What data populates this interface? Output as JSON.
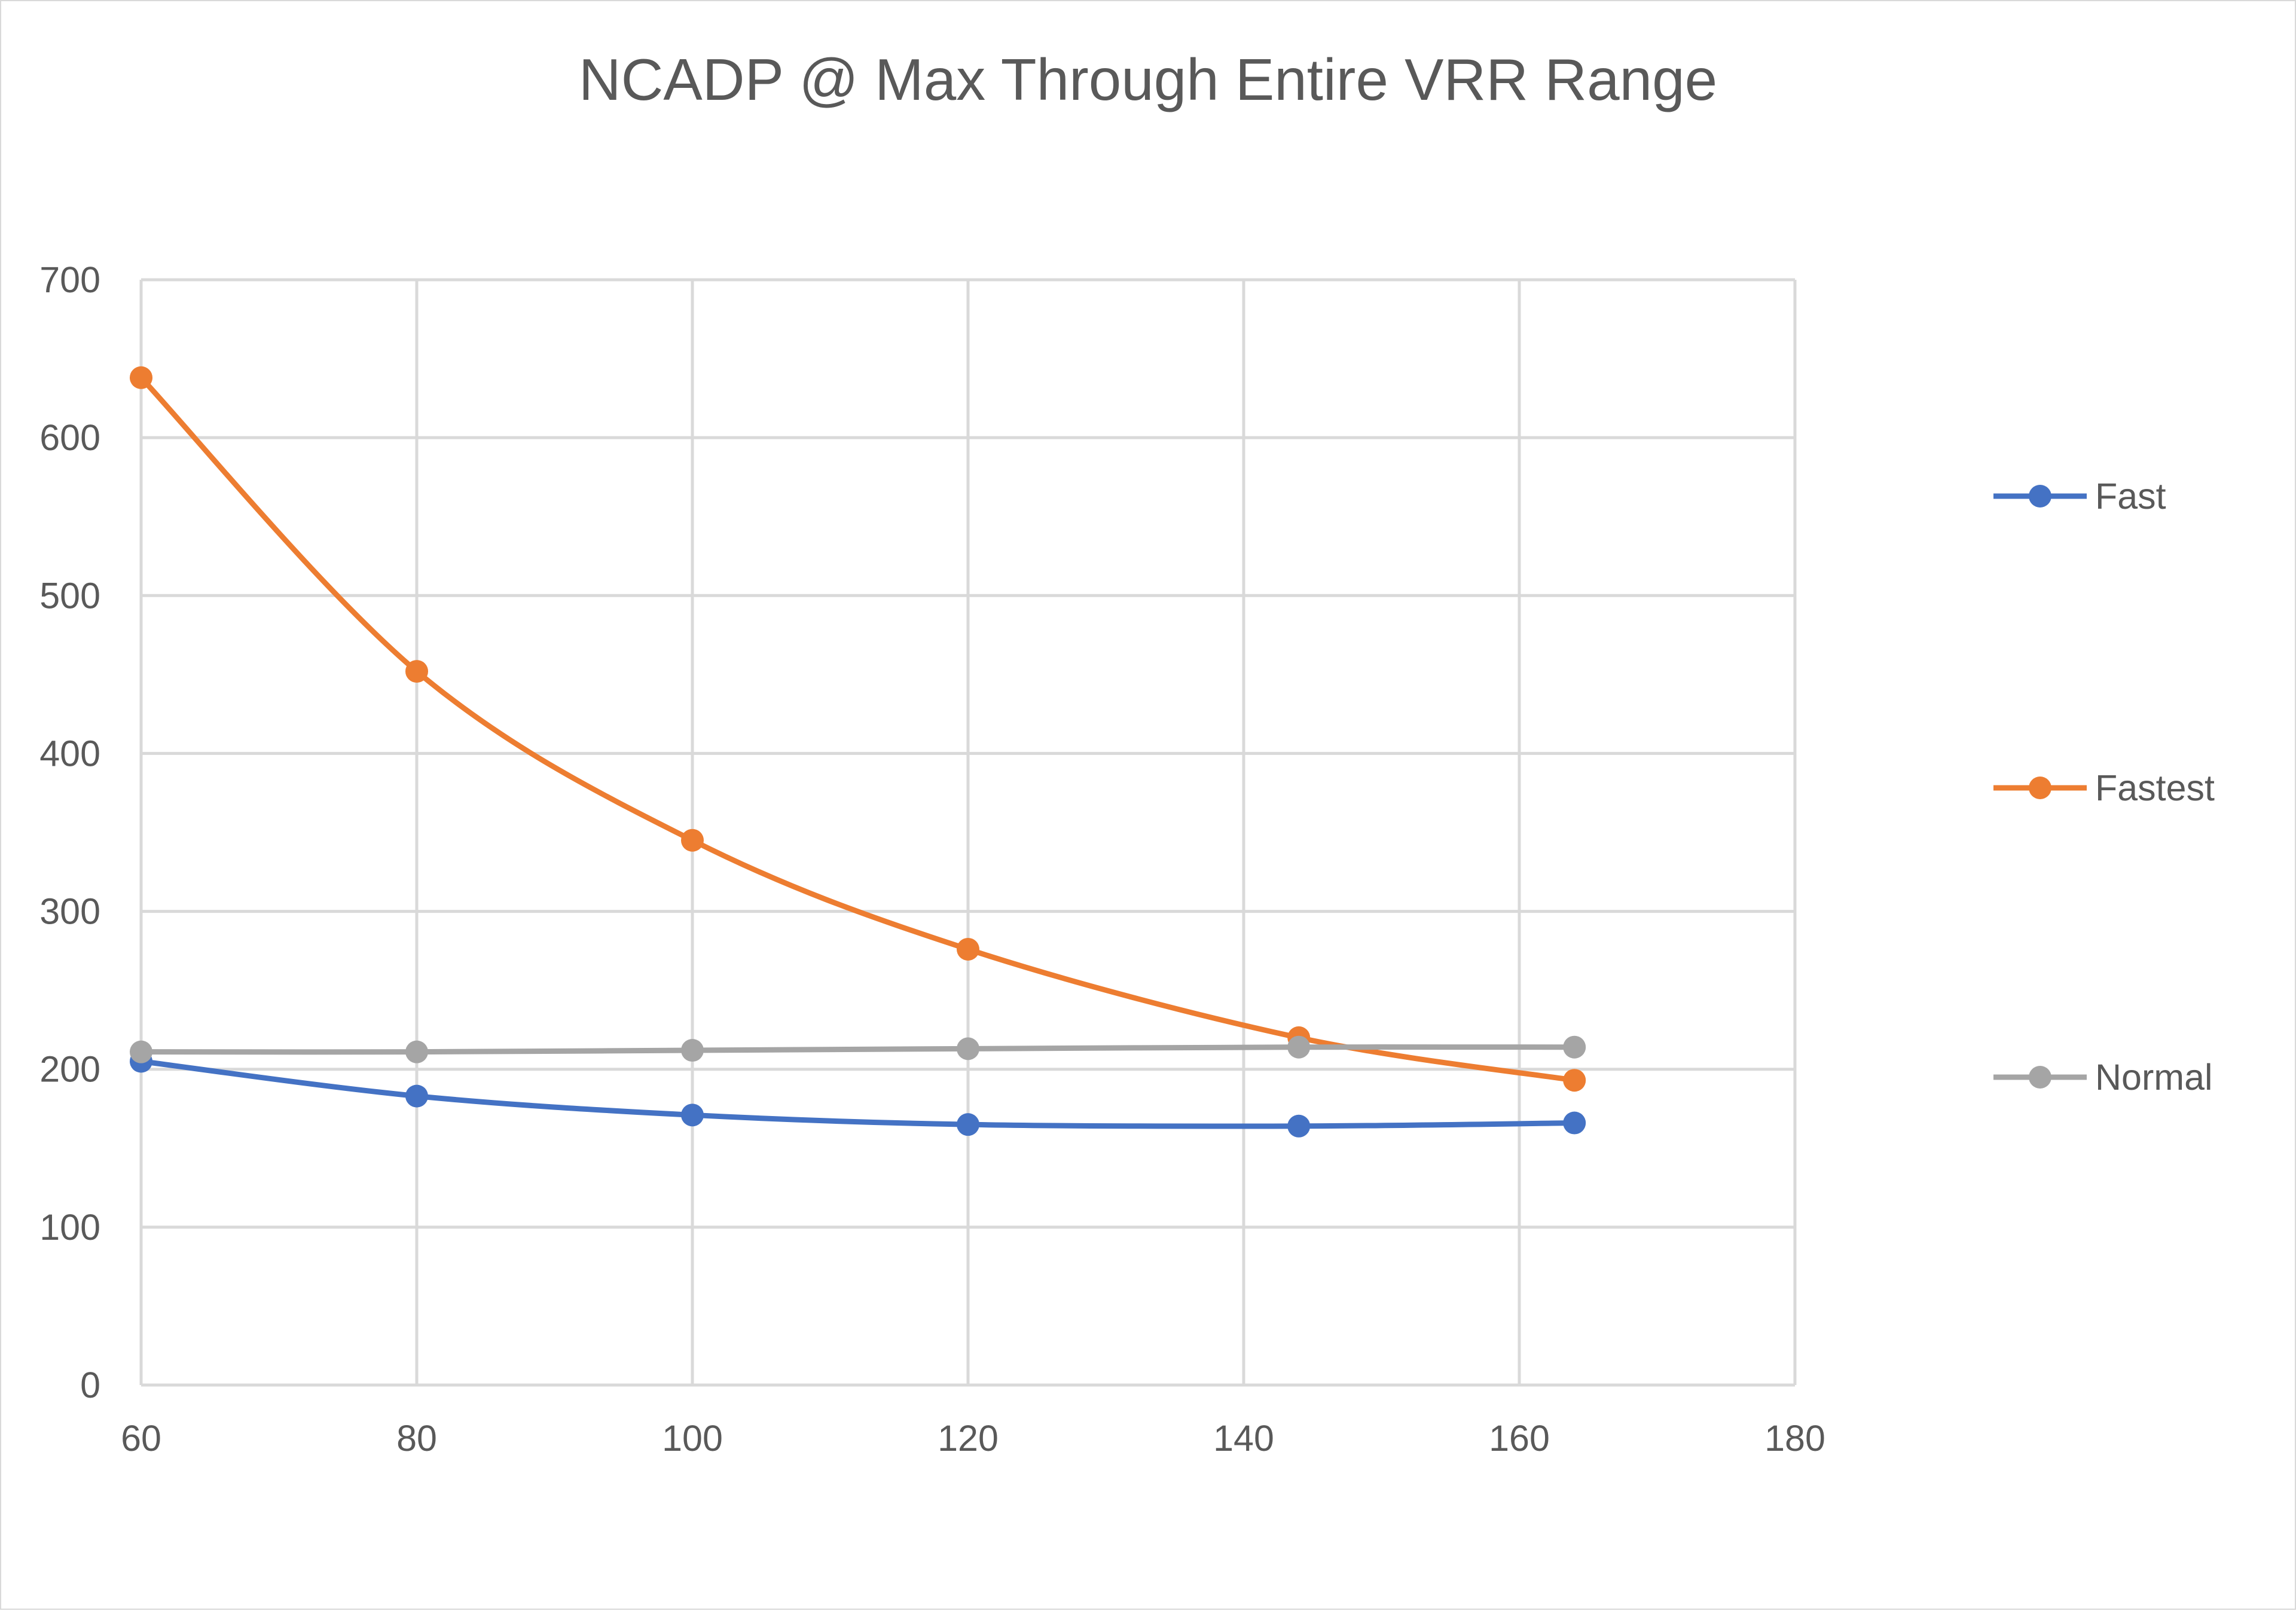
{
  "chart_data": {
    "type": "line",
    "title": "NCADP @ Max Through Entire VRR Range",
    "xlabel": "",
    "ylabel": "",
    "xlim": [
      60,
      180
    ],
    "ylim": [
      0,
      700
    ],
    "x_ticks": [
      60,
      80,
      100,
      120,
      140,
      160,
      180
    ],
    "y_ticks": [
      0,
      100,
      200,
      300,
      400,
      500,
      600,
      700
    ],
    "grid": true,
    "legend_position": "right",
    "x": [
      60,
      80,
      100,
      120,
      144,
      164
    ],
    "series": [
      {
        "name": "Fast",
        "color": "#4472c4",
        "values": [
          205,
          183,
          171,
          165,
          164,
          166
        ]
      },
      {
        "name": "Fastest",
        "color": "#ed7d31",
        "values": [
          638,
          452,
          345,
          276,
          220,
          193
        ]
      },
      {
        "name": "Normal",
        "color": "#a5a5a5",
        "values": [
          211,
          211,
          212,
          213,
          214,
          214
        ]
      }
    ]
  }
}
